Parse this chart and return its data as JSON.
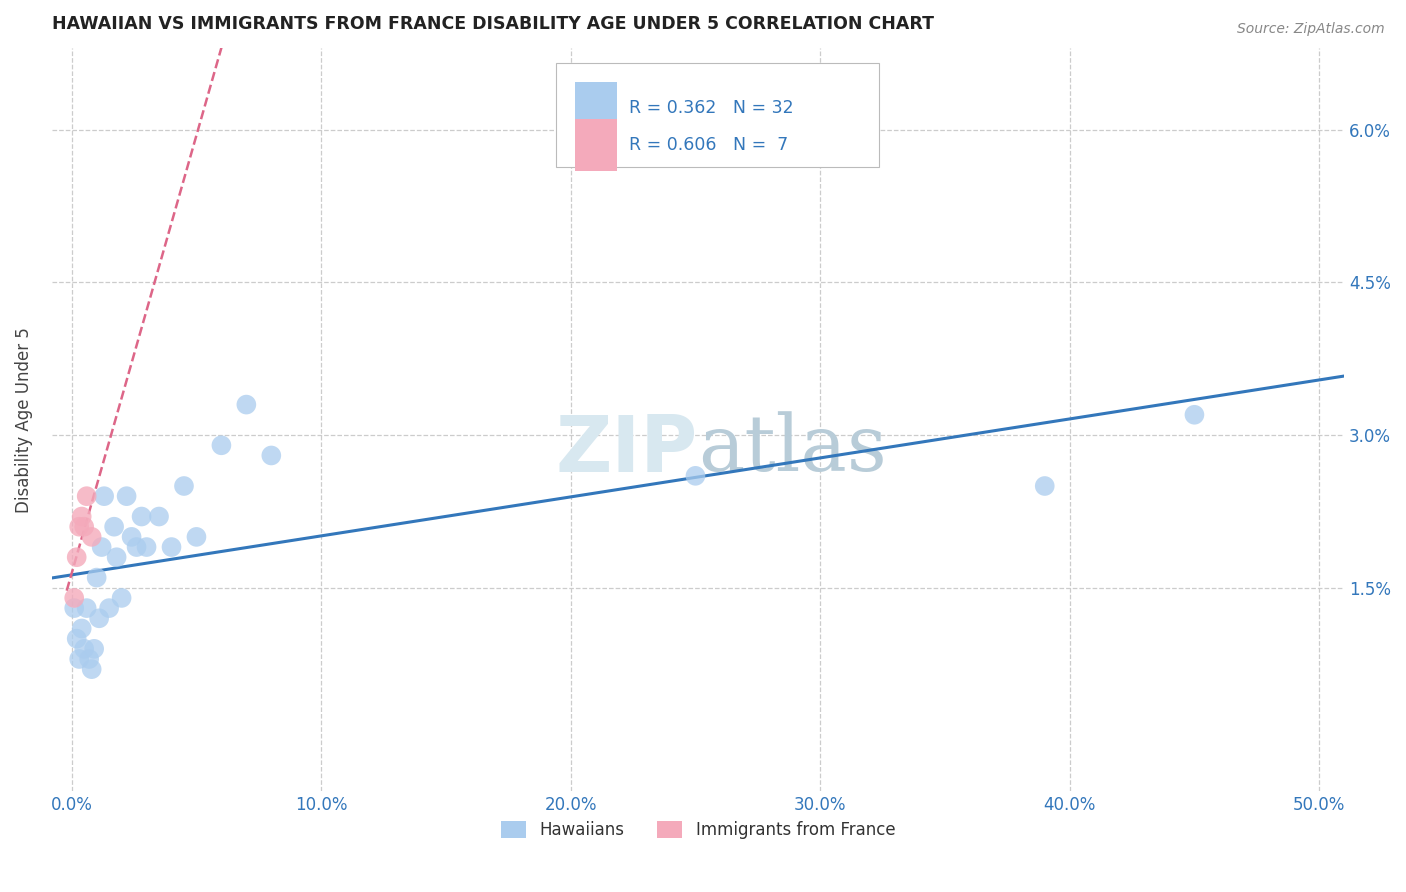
{
  "title": "HAWAIIAN VS IMMIGRANTS FROM FRANCE DISABILITY AGE UNDER 5 CORRELATION CHART",
  "source": "Source: ZipAtlas.com",
  "ylabel_label": "Disability Age Under 5",
  "x_ticklabels": [
    "0.0%",
    "10.0%",
    "20.0%",
    "30.0%",
    "40.0%",
    "50.0%"
  ],
  "x_tick_values": [
    0.0,
    0.1,
    0.2,
    0.3,
    0.4,
    0.5
  ],
  "y_ticklabels": [
    "1.5%",
    "3.0%",
    "4.5%",
    "6.0%"
  ],
  "y_tick_values": [
    0.015,
    0.03,
    0.045,
    0.06
  ],
  "xlim": [
    -0.008,
    0.51
  ],
  "ylim": [
    -0.005,
    0.068
  ],
  "hawaiians_x": [
    0.001,
    0.002,
    0.003,
    0.004,
    0.005,
    0.006,
    0.007,
    0.008,
    0.009,
    0.01,
    0.011,
    0.012,
    0.013,
    0.015,
    0.017,
    0.018,
    0.02,
    0.022,
    0.024,
    0.026,
    0.028,
    0.03,
    0.035,
    0.04,
    0.045,
    0.05,
    0.06,
    0.07,
    0.08,
    0.25,
    0.39,
    0.45
  ],
  "hawaiians_y": [
    0.013,
    0.01,
    0.008,
    0.011,
    0.009,
    0.013,
    0.008,
    0.007,
    0.009,
    0.016,
    0.012,
    0.019,
    0.024,
    0.013,
    0.021,
    0.018,
    0.014,
    0.024,
    0.02,
    0.019,
    0.022,
    0.019,
    0.022,
    0.019,
    0.025,
    0.02,
    0.029,
    0.033,
    0.028,
    0.026,
    0.025,
    0.032
  ],
  "france_x": [
    0.001,
    0.002,
    0.003,
    0.004,
    0.005,
    0.006,
    0.008
  ],
  "france_y": [
    0.014,
    0.018,
    0.021,
    0.022,
    0.021,
    0.024,
    0.02
  ],
  "hawaiians_R": 0.362,
  "hawaiians_N": 32,
  "france_R": 0.606,
  "france_N": 7,
  "blue_dot_color": "#aaccee",
  "pink_dot_color": "#f4aabb",
  "blue_line_color": "#3377bb",
  "pink_line_color": "#dd6688",
  "legend_color": "#3377bb",
  "watermark_color": "#d8e8f0",
  "background_color": "#ffffff",
  "grid_color": "#cccccc",
  "title_color": "#222222",
  "tick_color": "#3377bb",
  "ylabel_color": "#444444"
}
